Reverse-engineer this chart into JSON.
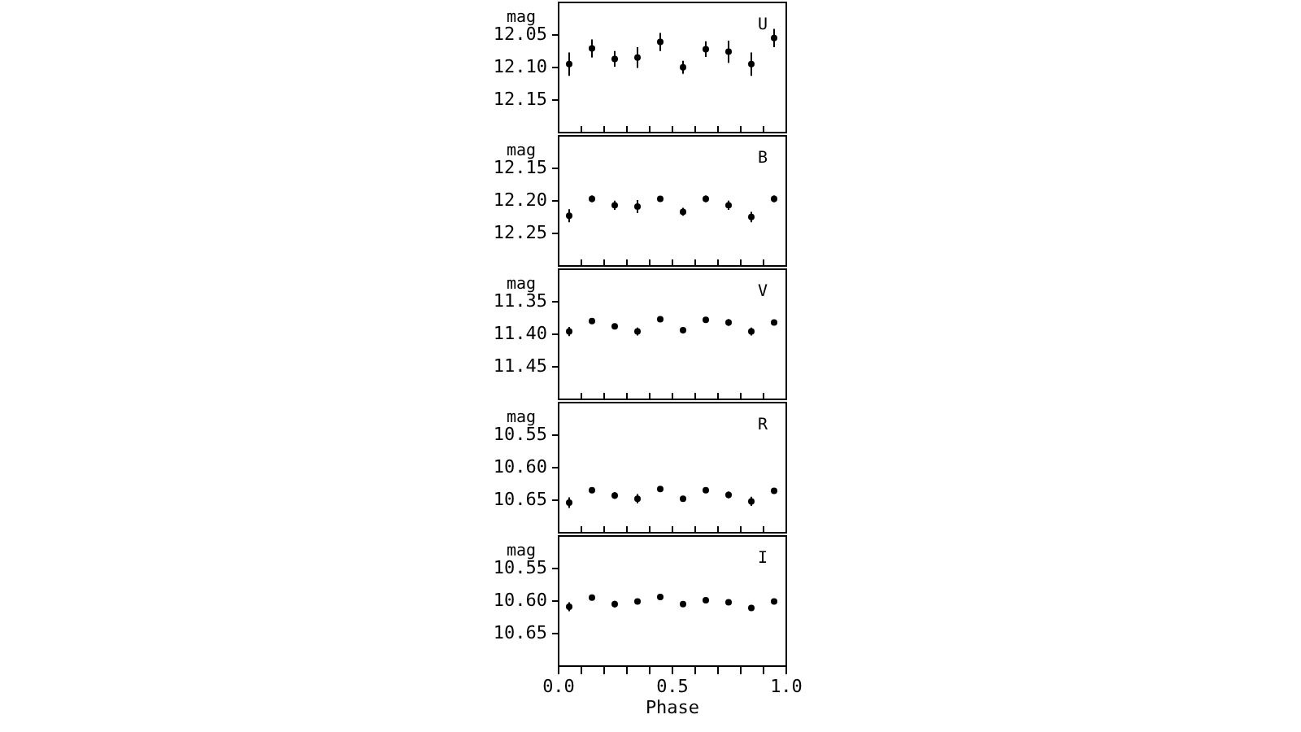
{
  "chart_data": [
    {
      "type": "scatter",
      "ylabel": "mag",
      "annotations": [
        "U"
      ],
      "x": [
        0.05,
        0.15,
        0.25,
        0.35,
        0.45,
        0.55,
        0.65,
        0.75,
        0.85,
        0.95
      ],
      "xlim": [
        0,
        1
      ],
      "ylim": [
        12.2,
        12.0
      ],
      "yticks": [
        12.05,
        {
          "value": 12.1,
          "label": "12.10"
        },
        12.15
      ],
      "xticks": [
        {
          "value": 0,
          "label": null
        },
        {
          "value": 0.1,
          "label": null
        },
        {
          "value": 0.2,
          "label": null
        },
        {
          "value": 0.3,
          "label": null
        },
        {
          "value": 0.4,
          "label": null
        },
        {
          "value": 0.5,
          "label": null
        },
        {
          "value": 0.6,
          "label": null
        },
        {
          "value": 0.7,
          "label": null
        },
        {
          "value": 0.8,
          "label": null
        },
        {
          "value": 0.9,
          "label": null
        },
        {
          "value": 1,
          "label": null
        }
      ],
      "tick_labels": "y",
      "marker": "circle",
      "grid": false,
      "legend": false,
      "series": [
        {
          "color": "#000000",
          "values": [
            12.096,
            12.072,
            12.088,
            12.086,
            12.062,
            12.101,
            12.073,
            12.077,
            12.096,
            12.056
          ],
          "errors": [
            0.018,
            0.014,
            0.012,
            0.016,
            0.014,
            0.01,
            0.012,
            0.017,
            0.018,
            0.014
          ]
        }
      ]
    },
    {
      "type": "scatter",
      "ylabel": "mag",
      "annotations": [
        "B"
      ],
      "x": [
        0.05,
        0.15,
        0.25,
        0.35,
        0.45,
        0.55,
        0.65,
        0.75,
        0.85,
        0.95
      ],
      "xlim": [
        0,
        1
      ],
      "ylim": [
        12.3,
        12.1
      ],
      "yticks": [
        12.15,
        {
          "value": 12.2,
          "label": "12.20"
        },
        12.25
      ],
      "xticks": [
        {
          "value": 0,
          "label": null
        },
        {
          "value": 0.1,
          "label": null
        },
        {
          "value": 0.2,
          "label": null
        },
        {
          "value": 0.3,
          "label": null
        },
        {
          "value": 0.4,
          "label": null
        },
        {
          "value": 0.5,
          "label": null
        },
        {
          "value": 0.6,
          "label": null
        },
        {
          "value": 0.7,
          "label": null
        },
        {
          "value": 0.8,
          "label": null
        },
        {
          "value": 0.9,
          "label": null
        },
        {
          "value": 1,
          "label": null
        }
      ],
      "tick_labels": "y",
      "marker": "circle",
      "grid": false,
      "legend": false,
      "series": [
        {
          "color": "#000000",
          "values": [
            12.224,
            12.198,
            12.208,
            12.21,
            12.198,
            12.218,
            12.198,
            12.208,
            12.226,
            12.198
          ],
          "errors": [
            0.01,
            0.005,
            0.007,
            0.01,
            0.003,
            0.006,
            0.005,
            0.007,
            0.008,
            0.005
          ]
        }
      ]
    },
    {
      "type": "scatter",
      "ylabel": "mag",
      "annotations": [
        "V"
      ],
      "x": [
        0.05,
        0.15,
        0.25,
        0.35,
        0.45,
        0.55,
        0.65,
        0.75,
        0.85,
        0.95
      ],
      "xlim": [
        0,
        1
      ],
      "ylim": [
        11.5,
        11.3
      ],
      "yticks": [
        11.35,
        {
          "value": 11.4,
          "label": "11.40"
        },
        11.45
      ],
      "xticks": [
        {
          "value": 0,
          "label": null
        },
        {
          "value": 0.1,
          "label": null
        },
        {
          "value": 0.2,
          "label": null
        },
        {
          "value": 0.3,
          "label": null
        },
        {
          "value": 0.4,
          "label": null
        },
        {
          "value": 0.5,
          "label": null
        },
        {
          "value": 0.6,
          "label": null
        },
        {
          "value": 0.7,
          "label": null
        },
        {
          "value": 0.8,
          "label": null
        },
        {
          "value": 0.9,
          "label": null
        },
        {
          "value": 1,
          "label": null
        }
      ],
      "tick_labels": "y",
      "marker": "circle",
      "grid": false,
      "legend": false,
      "series": [
        {
          "color": "#000000",
          "values": [
            11.397,
            11.381,
            11.389,
            11.397,
            11.378,
            11.395,
            11.379,
            11.383,
            11.397,
            11.383
          ],
          "errors": [
            0.007,
            0.003,
            0.004,
            0.006,
            0.004,
            0.003,
            0.003,
            0.005,
            0.006,
            0.004
          ]
        }
      ]
    },
    {
      "type": "scatter",
      "ylabel": "mag",
      "annotations": [
        "R"
      ],
      "x": [
        0.05,
        0.15,
        0.25,
        0.35,
        0.45,
        0.55,
        0.65,
        0.75,
        0.85,
        0.95
      ],
      "xlim": [
        0,
        1
      ],
      "ylim": [
        10.7,
        10.5
      ],
      "yticks": [
        10.55,
        {
          "value": 10.6,
          "label": "10.60"
        },
        10.65
      ],
      "xticks": [
        {
          "value": 0,
          "label": null
        },
        {
          "value": 0.1,
          "label": null
        },
        {
          "value": 0.2,
          "label": null
        },
        {
          "value": 0.3,
          "label": null
        },
        {
          "value": 0.4,
          "label": null
        },
        {
          "value": 0.5,
          "label": null
        },
        {
          "value": 0.6,
          "label": null
        },
        {
          "value": 0.7,
          "label": null
        },
        {
          "value": 0.8,
          "label": null
        },
        {
          "value": 0.9,
          "label": null
        },
        {
          "value": 1,
          "label": null
        }
      ],
      "tick_labels": "y",
      "marker": "circle",
      "grid": false,
      "legend": false,
      "series": [
        {
          "color": "#000000",
          "values": [
            10.655,
            10.636,
            10.644,
            10.649,
            10.634,
            10.649,
            10.636,
            10.643,
            10.653,
            10.637
          ],
          "errors": [
            0.008,
            0.004,
            0.005,
            0.007,
            0.003,
            0.003,
            0.003,
            0.005,
            0.007,
            0.003
          ]
        }
      ]
    },
    {
      "type": "scatter",
      "ylabel": "mag",
      "xlabel": "Phase",
      "annotations": [
        "I"
      ],
      "x": [
        0.05,
        0.15,
        0.25,
        0.35,
        0.45,
        0.55,
        0.65,
        0.75,
        0.85,
        0.95
      ],
      "xlim": [
        0,
        1
      ],
      "ylim": [
        10.7,
        10.5
      ],
      "yticks": [
        10.55,
        {
          "value": 10.6,
          "label": "10.60"
        },
        10.65
      ],
      "xticks": [
        {
          "value": 0,
          "label": "0.0"
        },
        {
          "value": 0.1,
          "label": null
        },
        {
          "value": 0.2,
          "label": null
        },
        {
          "value": 0.3,
          "label": null
        },
        {
          "value": 0.4,
          "label": null
        },
        {
          "value": 0.5,
          "label": "0.5"
        },
        {
          "value": 0.6,
          "label": null
        },
        {
          "value": 0.7,
          "label": null
        },
        {
          "value": 0.8,
          "label": null
        },
        {
          "value": 0.9,
          "label": null
        },
        {
          "value": 1,
          "label": "1.0"
        }
      ],
      "marker": "circle",
      "grid": false,
      "legend": false,
      "series": [
        {
          "color": "#000000",
          "values": [
            10.61,
            10.596,
            10.606,
            10.602,
            10.595,
            10.606,
            10.6,
            10.603,
            10.612,
            10.602
          ],
          "errors": [
            0.007,
            0.003,
            0.005,
            0.004,
            0.002,
            0.003,
            0.002,
            0.003,
            0.004,
            0.003
          ]
        }
      ]
    }
  ]
}
